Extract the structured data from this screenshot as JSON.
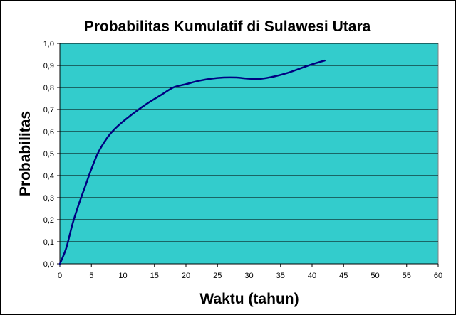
{
  "chart_data": {
    "type": "line",
    "title": "Probabilitas Kumulatif di  Sulawesi Utara",
    "xlabel": "Waktu (tahun)",
    "ylabel": "Probabilitas",
    "xlim": [
      0,
      60
    ],
    "ylim": [
      0,
      1
    ],
    "x_ticks": [
      "0",
      "5",
      "10",
      "15",
      "20",
      "25",
      "30",
      "35",
      "40",
      "45",
      "50",
      "55",
      "60"
    ],
    "y_ticks": [
      "0,0",
      "0,1",
      "0,2",
      "0,3",
      "0,4",
      "0,5",
      "0,6",
      "0,7",
      "0,8",
      "0,9",
      "1,0"
    ],
    "grid": "horizontal",
    "legend": "none",
    "series": [
      {
        "color": "#000080",
        "x": [
          0,
          1,
          2,
          3,
          4,
          5,
          6,
          7,
          8,
          9,
          10,
          12,
          14,
          16,
          18,
          20,
          22,
          24,
          26,
          28,
          30,
          32,
          34,
          36,
          38,
          40,
          42
        ],
        "y": [
          0.0,
          0.07,
          0.18,
          0.27,
          0.35,
          0.43,
          0.5,
          0.55,
          0.59,
          0.62,
          0.645,
          0.69,
          0.73,
          0.765,
          0.8,
          0.815,
          0.83,
          0.84,
          0.845,
          0.845,
          0.84,
          0.84,
          0.85,
          0.865,
          0.885,
          0.905,
          0.922
        ]
      }
    ],
    "colors": {
      "plot_area": "#33cccc",
      "line": "#000080",
      "gridline": "#000000"
    }
  }
}
